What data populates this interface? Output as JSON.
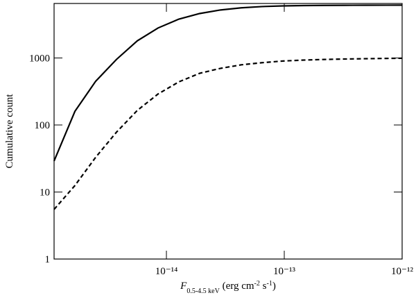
{
  "chart_data": {
    "type": "line",
    "ylabel": "Cumulative count",
    "xlabel_parts": [
      {
        "text": "F",
        "style": "italic"
      },
      {
        "text": "0.5-4.5 keV",
        "style": "sub"
      },
      {
        "text": " (erg cm",
        "style": "normal"
      },
      {
        "text": "-2",
        "style": "sup"
      },
      {
        "text": " s",
        "style": "normal"
      },
      {
        "text": "-1",
        "style": "sup"
      },
      {
        "text": ")",
        "style": "normal"
      }
    ],
    "xscale": "log",
    "yscale": "log",
    "x": [
      1.114e-15,
      1.674e-15,
      2.512e-15,
      3.767e-15,
      5.662e-15,
      8.492e-15,
      1.276e-14,
      1.914e-14,
      2.877e-14,
      4.315e-14,
      6.486e-14,
      9.727e-14,
      1.462e-13,
      2.193e-13,
      3.296e-13,
      4.943e-13,
      7.43e-13,
      1e-12
    ],
    "series": [
      {
        "color": "#000000",
        "dash": "solid",
        "values": [
          29,
          160,
          450,
          950,
          1800,
          2800,
          3800,
          4600,
          5200,
          5600,
          5850,
          5980,
          6050,
          6090,
          6110,
          6120,
          6130,
          6140
        ]
      },
      {
        "color": "#000000",
        "dash": "dashed",
        "values": [
          5.5,
          12.5,
          33,
          78,
          165,
          290,
          440,
          590,
          700,
          790,
          850,
          900,
          930,
          950,
          965,
          975,
          985,
          990
        ]
      }
    ],
    "xlim": [
      1.114e-15,
      1e-12
    ],
    "ylim": [
      1,
      6500
    ],
    "xticks": [
      {
        "value": 1e-14,
        "label": "10⁻¹⁴"
      },
      {
        "value": 1e-13,
        "label": "10⁻¹³"
      },
      {
        "value": 1e-12,
        "label": "10⁻¹²"
      }
    ],
    "yticks": [
      1,
      10,
      100,
      1000
    ],
    "grid": false
  }
}
